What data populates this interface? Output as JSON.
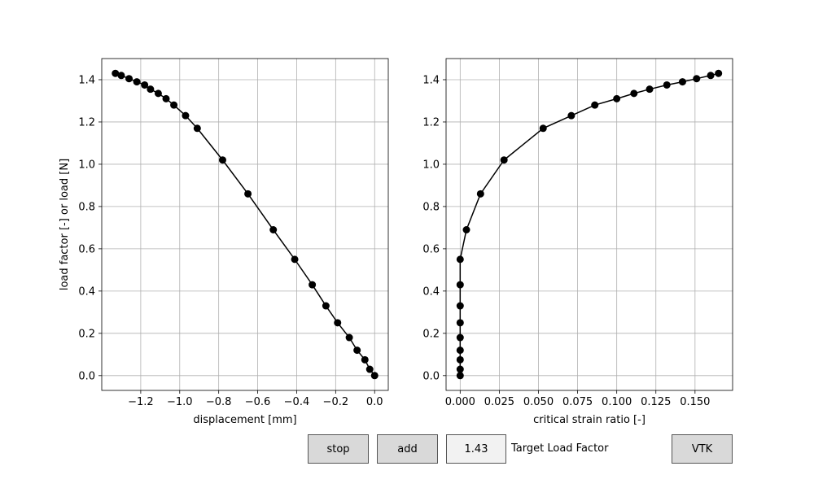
{
  "controls": {
    "stop_label": "stop",
    "add_label": "add",
    "target_value": "1.43",
    "target_label": "Target Load Factor",
    "vtk_label": "VTK"
  },
  "chart_data": [
    {
      "type": "line",
      "xlabel": "displacement [mm]",
      "ylabel": "load factor [-] or load [N]",
      "xlim": [
        -1.4,
        0.07
      ],
      "ylim": [
        -0.07,
        1.5
      ],
      "xticks": [
        -1.2,
        -1.0,
        -0.8,
        -0.6,
        -0.4,
        -0.2,
        0.0
      ],
      "xtick_labels": [
        "−1.2",
        "−1.0",
        "−0.8",
        "−0.6",
        "−0.4",
        "−0.2",
        "0.0"
      ],
      "yticks": [
        0.0,
        0.2,
        0.4,
        0.6,
        0.8,
        1.0,
        1.2,
        1.4
      ],
      "ytick_labels": [
        "0.0",
        "0.2",
        "0.4",
        "0.6",
        "0.8",
        "1.0",
        "1.2",
        "1.4"
      ],
      "grid": true,
      "color": "#000000",
      "series": [
        {
          "x": [
            0.0,
            -0.025,
            -0.05,
            -0.09,
            -0.13,
            -0.19,
            -0.25,
            -0.32,
            -0.41,
            -0.52,
            -0.65,
            -0.78,
            -0.91,
            -0.97,
            -1.03,
            -1.07,
            -1.11,
            -1.15,
            -1.18,
            -1.22,
            -1.26,
            -1.3,
            -1.33
          ],
          "y": [
            0.0,
            0.03,
            0.075,
            0.12,
            0.18,
            0.25,
            0.33,
            0.43,
            0.55,
            0.69,
            0.86,
            1.02,
            1.17,
            1.23,
            1.28,
            1.31,
            1.335,
            1.355,
            1.375,
            1.39,
            1.405,
            1.42,
            1.43
          ]
        }
      ]
    },
    {
      "type": "line",
      "xlabel": "critical strain ratio [-]",
      "ylabel": "",
      "xlim": [
        -0.009,
        0.174
      ],
      "ylim": [
        -0.07,
        1.5
      ],
      "xticks": [
        0.0,
        0.025,
        0.05,
        0.075,
        0.1,
        0.125,
        0.15
      ],
      "xtick_labels": [
        "0.000",
        "0.025",
        "0.050",
        "0.075",
        "0.100",
        "0.125",
        "0.150"
      ],
      "yticks": [
        0.0,
        0.2,
        0.4,
        0.6,
        0.8,
        1.0,
        1.2,
        1.4
      ],
      "ytick_labels": [
        "0.0",
        "0.2",
        "0.4",
        "0.6",
        "0.8",
        "1.0",
        "1.2",
        "1.4"
      ],
      "grid": true,
      "color": "#000000",
      "series": [
        {
          "x": [
            0.0,
            0.0,
            0.0,
            0.0,
            0.0,
            0.0,
            0.0,
            0.0,
            0.0,
            0.004,
            0.013,
            0.028,
            0.053,
            0.071,
            0.086,
            0.1,
            0.111,
            0.121,
            0.132,
            0.142,
            0.151,
            0.16,
            0.165
          ],
          "y": [
            0.0,
            0.03,
            0.075,
            0.12,
            0.18,
            0.25,
            0.33,
            0.43,
            0.55,
            0.69,
            0.86,
            1.02,
            1.17,
            1.23,
            1.28,
            1.31,
            1.335,
            1.355,
            1.375,
            1.39,
            1.405,
            1.42,
            1.43
          ]
        }
      ]
    }
  ]
}
